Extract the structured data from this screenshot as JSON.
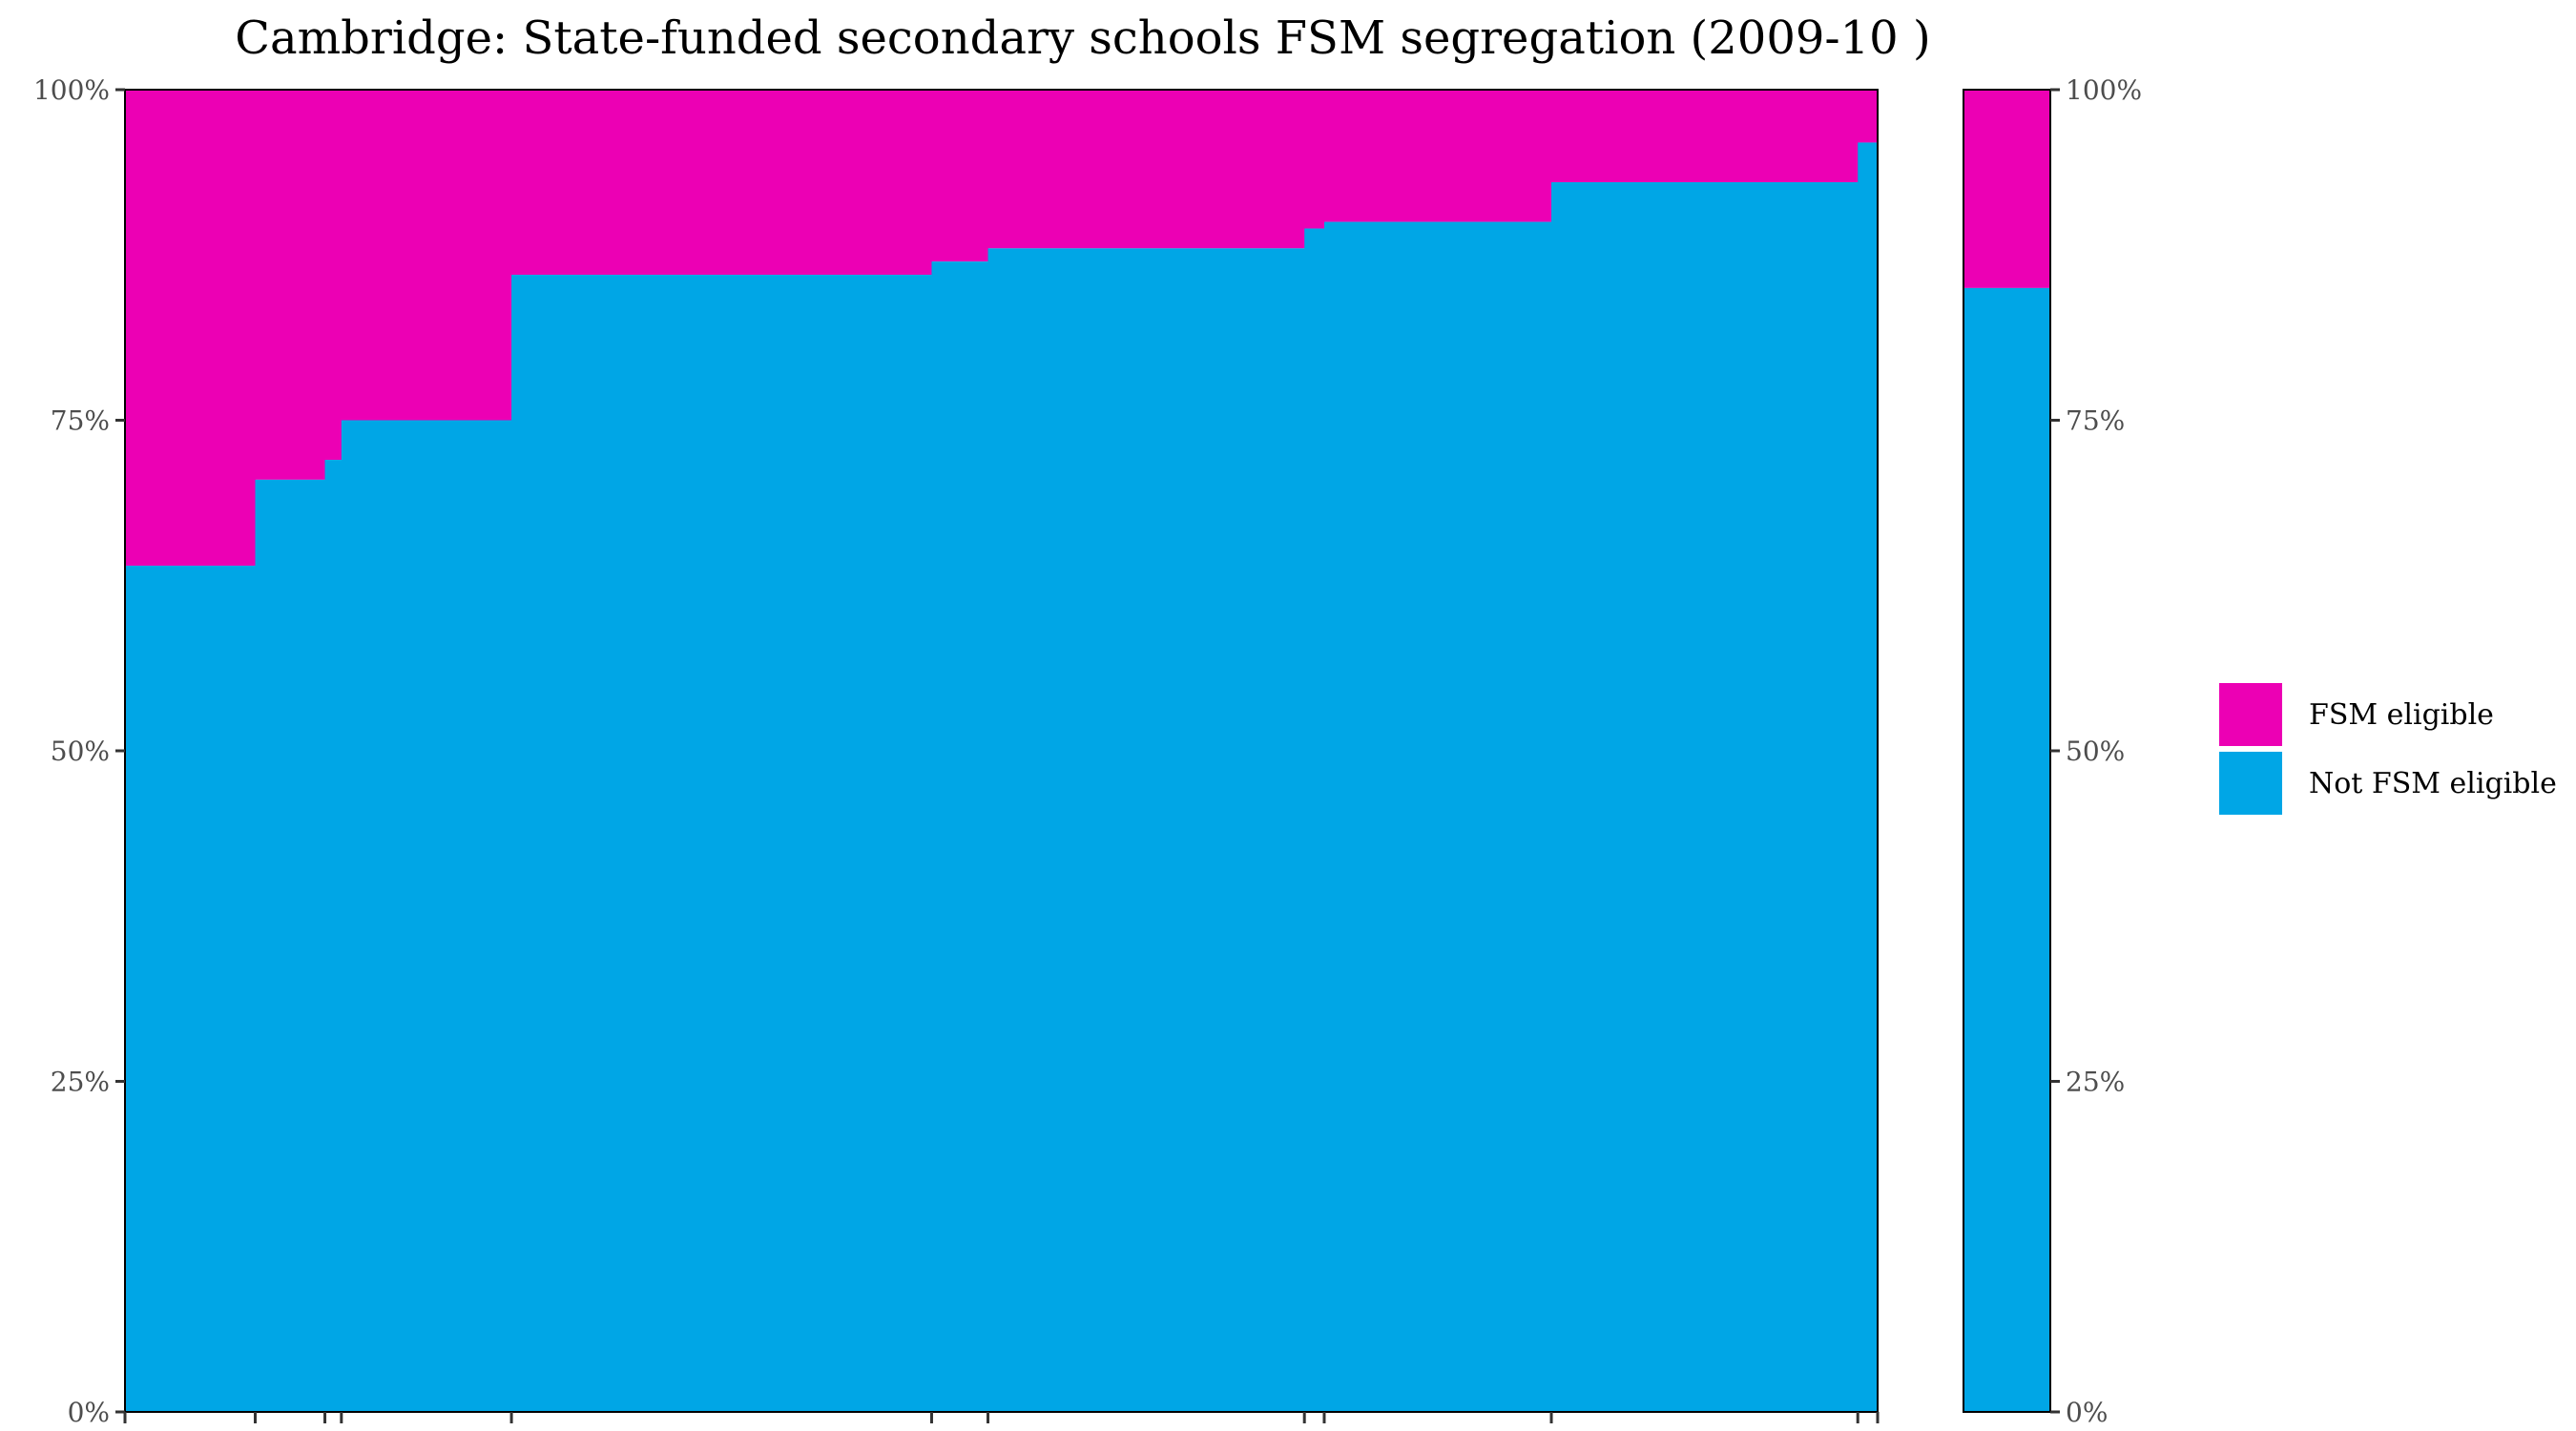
{
  "chart_data": {
    "type": "bar",
    "title": "Cambridge: State-funded secondary schools FSM segregation (2009-10 )",
    "xlabel": "",
    "ylabel": "",
    "ylim": [
      0,
      1
    ],
    "y_ticks": [
      {
        "value": 0,
        "label": "0%"
      },
      {
        "value": 0.25,
        "label": "25%"
      },
      {
        "value": 0.5,
        "label": "50%"
      },
      {
        "value": 0.75,
        "label": "75%"
      },
      {
        "value": 1,
        "label": "100%"
      }
    ],
    "x_ticks_labeled": false,
    "stacked": true,
    "variable_width": true,
    "grid": false,
    "legend_position": "right",
    "colors": {
      "fsm": "#ec00b4",
      "not_fsm": "#00a6e6"
    },
    "series": [
      {
        "name": "FSM eligible",
        "color_key": "fsm"
      },
      {
        "name": "Not FSM eligible",
        "color_key": "not_fsm"
      }
    ],
    "schools": [
      {
        "share": 0.0742,
        "not_fsm": 0.64
      },
      {
        "share": 0.0397,
        "not_fsm": 0.705
      },
      {
        "share": 0.0094,
        "not_fsm": 0.72
      },
      {
        "share": 0.0969,
        "not_fsm": 0.75
      },
      {
        "share": 0.2394,
        "not_fsm": 0.86
      },
      {
        "share": 0.0321,
        "not_fsm": 0.87
      },
      {
        "share": 0.1803,
        "not_fsm": 0.88
      },
      {
        "share": 0.0113,
        "not_fsm": 0.895
      },
      {
        "share": 0.1294,
        "not_fsm": 0.9
      },
      {
        "share": 0.1746,
        "not_fsm": 0.93
      },
      {
        "share": 0.0113,
        "not_fsm": 0.96
      }
    ],
    "total_bar": {
      "not_fsm": 0.85
    }
  }
}
